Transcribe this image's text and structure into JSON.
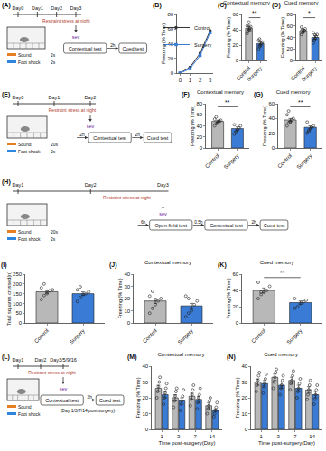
{
  "chart_data": [
    {
      "label": "(B)",
      "type": "line",
      "x": [
        0,
        1,
        2,
        3
      ],
      "xlim": [
        -0.3,
        3.3
      ],
      "xticks": [
        0,
        1,
        2,
        3
      ],
      "ylim": [
        0,
        80
      ],
      "yticks": [
        0,
        20,
        40,
        60,
        80
      ],
      "y_label": "Freezing (% Time)",
      "legend": "top-left",
      "grid": false,
      "series": [
        {
          "name": "Control",
          "color": "#333333",
          "marker": "circle",
          "values": [
            0,
            8,
            27,
            58
          ]
        },
        {
          "name": "Surgery",
          "color": "#3a7bd5",
          "marker": "square",
          "values": [
            0,
            6,
            24,
            55
          ]
        }
      ]
    },
    {
      "label": "(C)",
      "type": "bar",
      "title": "Contextual memory",
      "categories": [
        "Control",
        "Surgery"
      ],
      "values": [
        42,
        22
      ],
      "errors": [
        2,
        2
      ],
      "colors": [
        "#b8b8b8",
        "#3a7bd5"
      ],
      "points": [
        [
          35,
          38,
          40,
          42,
          44,
          45,
          47,
          50,
          39
        ],
        [
          15,
          18,
          20,
          22,
          24,
          26,
          28,
          19
        ]
      ],
      "ylim": [
        0,
        60
      ],
      "yticks": [
        0,
        20,
        40,
        60
      ],
      "y_label": "Freezing (% Time)",
      "grid": false,
      "annotations": [
        "**"
      ]
    },
    {
      "label": "(D)",
      "type": "bar",
      "title": "Cued memory",
      "categories": [
        "Control",
        "Surgery"
      ],
      "values": [
        52,
        40
      ],
      "errors": [
        2,
        3
      ],
      "colors": [
        "#b8b8b8",
        "#3a7bd5"
      ],
      "points": [
        [
          45,
          48,
          50,
          52,
          55,
          58,
          54,
          49
        ],
        [
          30,
          35,
          38,
          42,
          45,
          48,
          36,
          44
        ]
      ],
      "ylim": [
        0,
        80
      ],
      "yticks": [
        0,
        20,
        40,
        60,
        80
      ],
      "y_label": "Freezing (% Time)",
      "grid": false,
      "annotations": [
        "*"
      ]
    },
    {
      "label": "(F)",
      "type": "bar",
      "title": "Contextual memory",
      "categories": [
        "Control",
        "Surgery"
      ],
      "values": [
        48,
        35
      ],
      "errors": [
        2,
        3
      ],
      "colors": [
        "#b8b8b8",
        "#3a7bd5"
      ],
      "points": [
        [
          40,
          44,
          46,
          48,
          50,
          52,
          56,
          45,
          49
        ],
        [
          25,
          30,
          33,
          36,
          40,
          42,
          28
        ]
      ],
      "ylim": [
        0,
        80
      ],
      "yticks": [
        0,
        20,
        40,
        60,
        80
      ],
      "y_label": "Freezing (% Time)",
      "grid": false,
      "annotations": [
        "**"
      ]
    },
    {
      "label": "(G)",
      "type": "bar",
      "title": "Cued memory",
      "categories": [
        "Control",
        "Surgery"
      ],
      "values": [
        38,
        28
      ],
      "errors": [
        2,
        2
      ],
      "colors": [
        "#b8b8b8",
        "#3a7bd5"
      ],
      "points": [
        [
          30,
          34,
          36,
          38,
          40,
          45,
          50,
          35
        ],
        [
          20,
          24,
          26,
          28,
          30,
          35,
          22
        ]
      ],
      "ylim": [
        0,
        60
      ],
      "yticks": [
        0,
        20,
        40,
        60
      ],
      "y_label": "Freezing (% Time)",
      "grid": false,
      "annotations": [
        "**"
      ]
    },
    {
      "label": "(I)",
      "type": "bar",
      "categories": [
        "Control",
        "Surgery"
      ],
      "values": [
        160,
        150
      ],
      "errors": [
        9,
        9
      ],
      "colors": [
        "#b8b8b8",
        "#3a7bd5"
      ],
      "points": [
        [
          120,
          140,
          150,
          165,
          170,
          180,
          200,
          160
        ],
        [
          110,
          130,
          145,
          150,
          160,
          170,
          185
        ]
      ],
      "ylim": [
        0,
        250
      ],
      "yticks": [
        0,
        50,
        100,
        150,
        200,
        250
      ],
      "y_label": "Total squares crossed(n)",
      "grid": false
    },
    {
      "label": "(J)",
      "type": "bar",
      "title": "Contextual memory",
      "categories": [
        "Control",
        "Surgery"
      ],
      "values": [
        18,
        14
      ],
      "errors": [
        2,
        2
      ],
      "colors": [
        "#b8b8b8",
        "#3a7bd5"
      ],
      "points": [
        [
          8,
          12,
          15,
          18,
          20,
          22,
          26,
          19
        ],
        [
          5,
          8,
          12,
          15,
          18,
          22,
          20,
          10
        ]
      ],
      "ylim": [
        0,
        40
      ],
      "yticks": [
        0,
        10,
        20,
        30,
        40
      ],
      "y_label": "Freezing (% Time)",
      "grid": false
    },
    {
      "label": "(K)",
      "type": "bar",
      "title": "Cued memory",
      "categories": [
        "Control",
        "Surgery"
      ],
      "values": [
        40,
        25
      ],
      "errors": [
        3,
        2
      ],
      "colors": [
        "#b8b8b8",
        "#3a7bd5"
      ],
      "points": [
        [
          30,
          35,
          38,
          40,
          45,
          50,
          38
        ],
        [
          18,
          20,
          24,
          26,
          28,
          30
        ]
      ],
      "ylim": [
        0,
        60
      ],
      "yticks": [
        0,
        20,
        40,
        60
      ],
      "y_label": "Freezing (% Time)",
      "grid": false,
      "annotations": [
        "**"
      ]
    },
    {
      "label": "(M)",
      "type": "bar",
      "title": "Contextual memory",
      "categories": [
        "1",
        "3",
        "7",
        "14"
      ],
      "x_label": "Time post-surgery(Day)",
      "y_label": "Freezing (% Time)",
      "ylim": [
        0,
        40
      ],
      "yticks": [
        0,
        10,
        20,
        30,
        40
      ],
      "grid": false,
      "series": [
        {
          "name": "Control",
          "color": "#b8b8b8",
          "values": [
            26,
            20,
            21,
            15
          ],
          "errors": [
            2,
            2,
            2,
            2
          ],
          "points": [
            [
              20,
              24,
              27,
              30,
              33
            ],
            [
              14,
              18,
              21,
              24,
              26
            ],
            [
              15,
              19,
              22,
              25,
              28
            ],
            [
              10,
              13,
              15,
              18,
              20
            ]
          ]
        },
        {
          "name": "Surgery",
          "color": "#3a7bd5",
          "values": [
            22,
            18,
            19,
            12
          ],
          "errors": [
            2,
            2,
            2,
            1
          ],
          "points": [
            [
              16,
              20,
              23,
              26,
              29
            ],
            [
              12,
              16,
              18,
              21,
              25
            ],
            [
              13,
              17,
              20,
              22,
              26
            ],
            [
              8,
              10,
              12,
              14,
              17
            ]
          ]
        }
      ]
    },
    {
      "label": "(N)",
      "type": "bar",
      "title": "Cued memory",
      "categories": [
        "1",
        "3",
        "7",
        "14"
      ],
      "x_label": "Time post-surgery(Day)",
      "y_label": "Freezing (% Time)",
      "ylim": [
        0,
        40
      ],
      "yticks": [
        0,
        10,
        20,
        30,
        40
      ],
      "grid": false,
      "series": [
        {
          "name": "Control",
          "color": "#b8b8b8",
          "values": [
            30,
            33,
            31,
            25
          ],
          "errors": [
            2,
            2,
            2,
            2
          ],
          "points": [
            [
              24,
              28,
              31,
              34,
              36
            ],
            [
              26,
              30,
              33,
              36,
              38
            ],
            [
              25,
              29,
              31,
              34,
              37
            ],
            [
              19,
              22,
              25,
              28,
              31
            ]
          ]
        },
        {
          "name": "Surgery",
          "color": "#3a7bd5",
          "values": [
            29,
            28,
            26,
            22
          ],
          "errors": [
            2,
            2,
            2,
            2
          ],
          "points": [
            [
              23,
              27,
              29,
              32,
              35
            ],
            [
              22,
              26,
              28,
              31,
              34
            ],
            [
              20,
              24,
              26,
              29,
              32
            ],
            [
              16,
              19,
              22,
              25,
              28
            ]
          ]
        }
      ]
    }
  ],
  "diagrams": [
    {
      "label": "(A)",
      "days": [
        "Day0",
        "Day1",
        "Day2",
        "Day3"
      ],
      "stress": "Restraint stress at night",
      "anesthesia": "sev",
      "sound": "Sound",
      "shock": "Foot shock",
      "durations": [
        "2s",
        "2s"
      ],
      "tests": [
        "Contextual test",
        "Cued test"
      ],
      "intervals": [
        "2h"
      ]
    },
    {
      "label": "(E)",
      "days": [
        "Day0",
        "Day1",
        "Day2"
      ],
      "stress": "Restraint stress at night",
      "anesthesia": "sev",
      "lead": "2h",
      "sound": "Sound",
      "shock": "Foot shock",
      "durations": [
        "20s",
        "2s"
      ],
      "tests": [
        "Contextual test",
        "Cued test"
      ],
      "intervals": [
        "2h"
      ]
    },
    {
      "label": "(H)",
      "days": [
        "Day1",
        "Day2",
        "Day3"
      ],
      "stress": "Restraint stress at night",
      "anesthesia": "sev",
      "lead": "6h",
      "sound": "Sound",
      "shock": "Foot shock",
      "durations": [
        "20s",
        "2s"
      ],
      "tests": [
        "Open field test",
        "Contextual test",
        "Cued test"
      ],
      "intervals": [
        "0.5h",
        "2h"
      ]
    },
    {
      "label": "(L)",
      "days": [
        "Day1",
        "Day2",
        "Day3/5/9/16"
      ],
      "stress": "Restraint stress at night",
      "anesthesia": "sev",
      "sound": "Sound",
      "shock": "Foot shock",
      "durations": [],
      "tests": [
        "Contextual test",
        "Cued test"
      ],
      "intervals": [
        "2h"
      ],
      "note": "(Day 1/3/7/14 post surgery)"
    }
  ]
}
